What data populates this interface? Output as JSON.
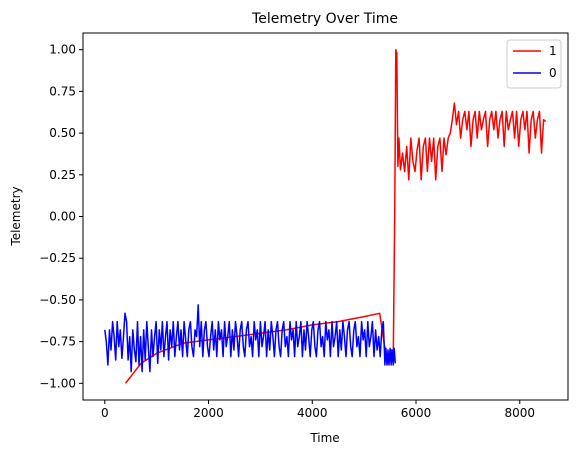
{
  "chart_data": {
    "type": "line",
    "title": "Telemetry Over Time",
    "xlabel": "Time",
    "ylabel": "Telemetry",
    "xlim": [
      -420,
      8930
    ],
    "ylim": [
      -1.1,
      1.1
    ],
    "x_ticks": [
      0,
      2000,
      4000,
      6000,
      8000
    ],
    "x_tick_labels": [
      "0",
      "2000",
      "4000",
      "6000",
      "8000"
    ],
    "y_ticks": [
      -1.0,
      -0.75,
      -0.5,
      -0.25,
      0.0,
      0.25,
      0.5,
      0.75,
      1.0
    ],
    "y_tick_labels": [
      "−1.00",
      "−0.75",
      "−0.50",
      "−0.25",
      "0.00",
      "0.25",
      "0.50",
      "0.75",
      "1.00"
    ],
    "grid": false,
    "legend_position": "top-right",
    "series": [
      {
        "name": "1",
        "color": "#ff0000",
        "points": [
          [
            400,
            -1.0
          ],
          [
            700,
            -0.88
          ],
          [
            1000,
            -0.82
          ],
          [
            1500,
            -0.76
          ],
          [
            2000,
            -0.74
          ],
          [
            2500,
            -0.72
          ],
          [
            3000,
            -0.7
          ],
          [
            3500,
            -0.68
          ],
          [
            4000,
            -0.65
          ],
          [
            4500,
            -0.63
          ],
          [
            5000,
            -0.6
          ],
          [
            5300,
            -0.58
          ],
          [
            5400,
            -0.79
          ],
          [
            5450,
            -0.88
          ],
          [
            5520,
            -0.8
          ],
          [
            5560,
            -0.88
          ],
          [
            5590,
            0.0
          ],
          [
            5610,
            1.0
          ],
          [
            5630,
            0.98
          ],
          [
            5650,
            0.3
          ],
          [
            5670,
            0.47
          ],
          [
            5700,
            0.28
          ],
          [
            5740,
            0.38
          ],
          [
            5780,
            0.27
          ],
          [
            5820,
            0.42
          ],
          [
            5860,
            0.22
          ],
          [
            5900,
            0.47
          ],
          [
            5940,
            0.33
          ],
          [
            5980,
            0.27
          ],
          [
            6020,
            0.4
          ],
          [
            6060,
            0.47
          ],
          [
            6100,
            0.22
          ],
          [
            6140,
            0.42
          ],
          [
            6180,
            0.47
          ],
          [
            6220,
            0.27
          ],
          [
            6260,
            0.47
          ],
          [
            6300,
            0.33
          ],
          [
            6340,
            0.47
          ],
          [
            6380,
            0.22
          ],
          [
            6420,
            0.42
          ],
          [
            6460,
            0.47
          ],
          [
            6500,
            0.27
          ],
          [
            6540,
            0.47
          ],
          [
            6580,
            0.37
          ],
          [
            6620,
            0.47
          ],
          [
            6660,
            0.5
          ],
          [
            6700,
            0.58
          ],
          [
            6740,
            0.68
          ],
          [
            6780,
            0.55
          ],
          [
            6820,
            0.63
          ],
          [
            6860,
            0.47
          ],
          [
            6900,
            0.58
          ],
          [
            6940,
            0.63
          ],
          [
            6980,
            0.52
          ],
          [
            7020,
            0.63
          ],
          [
            7060,
            0.42
          ],
          [
            7100,
            0.58
          ],
          [
            7140,
            0.63
          ],
          [
            7180,
            0.47
          ],
          [
            7220,
            0.63
          ],
          [
            7260,
            0.52
          ],
          [
            7300,
            0.58
          ],
          [
            7340,
            0.63
          ],
          [
            7380,
            0.42
          ],
          [
            7420,
            0.58
          ],
          [
            7460,
            0.63
          ],
          [
            7500,
            0.52
          ],
          [
            7540,
            0.63
          ],
          [
            7580,
            0.47
          ],
          [
            7620,
            0.58
          ],
          [
            7660,
            0.63
          ],
          [
            7700,
            0.42
          ],
          [
            7740,
            0.63
          ],
          [
            7780,
            0.52
          ],
          [
            7820,
            0.58
          ],
          [
            7860,
            0.63
          ],
          [
            7900,
            0.47
          ],
          [
            7940,
            0.63
          ],
          [
            7980,
            0.42
          ],
          [
            8020,
            0.58
          ],
          [
            8060,
            0.63
          ],
          [
            8100,
            0.52
          ],
          [
            8140,
            0.63
          ],
          [
            8180,
            0.38
          ],
          [
            8220,
            0.58
          ],
          [
            8260,
            0.63
          ],
          [
            8300,
            0.47
          ],
          [
            8340,
            0.58
          ],
          [
            8380,
            0.63
          ],
          [
            8420,
            0.38
          ],
          [
            8460,
            0.58
          ],
          [
            8500,
            0.57
          ]
        ]
      },
      {
        "name": "0",
        "color": "#0000ff",
        "points": [
          [
            0,
            -0.68
          ],
          [
            30,
            -0.75
          ],
          [
            60,
            -0.89
          ],
          [
            90,
            -0.68
          ],
          [
            120,
            -0.8
          ],
          [
            150,
            -0.63
          ],
          [
            180,
            -0.72
          ],
          [
            210,
            -0.86
          ],
          [
            240,
            -0.63
          ],
          [
            270,
            -0.78
          ],
          [
            300,
            -0.68
          ],
          [
            330,
            -0.85
          ],
          [
            360,
            -0.72
          ],
          [
            390,
            -0.58
          ],
          [
            420,
            -0.63
          ],
          [
            450,
            -0.86
          ],
          [
            480,
            -0.72
          ],
          [
            510,
            -0.93
          ],
          [
            540,
            -0.68
          ],
          [
            570,
            -0.8
          ],
          [
            600,
            -0.87
          ],
          [
            630,
            -0.63
          ],
          [
            660,
            -0.89
          ],
          [
            690,
            -0.72
          ],
          [
            720,
            -0.93
          ],
          [
            750,
            -0.68
          ],
          [
            780,
            -0.86
          ],
          [
            810,
            -0.63
          ],
          [
            840,
            -0.79
          ],
          [
            870,
            -0.93
          ],
          [
            900,
            -0.68
          ],
          [
            930,
            -0.84
          ],
          [
            960,
            -0.72
          ],
          [
            990,
            -0.63
          ],
          [
            1020,
            -0.88
          ],
          [
            1050,
            -0.68
          ],
          [
            1080,
            -0.8
          ],
          [
            1110,
            -0.63
          ],
          [
            1140,
            -0.84
          ],
          [
            1170,
            -0.72
          ],
          [
            1200,
            -0.63
          ],
          [
            1230,
            -0.86
          ],
          [
            1260,
            -0.68
          ],
          [
            1290,
            -0.78
          ],
          [
            1320,
            -0.63
          ],
          [
            1350,
            -0.84
          ],
          [
            1380,
            -0.72
          ],
          [
            1410,
            -0.63
          ],
          [
            1440,
            -0.8
          ],
          [
            1470,
            -0.68
          ],
          [
            1500,
            -0.84
          ],
          [
            1530,
            -0.63
          ],
          [
            1560,
            -0.74
          ],
          [
            1590,
            -0.84
          ],
          [
            1620,
            -0.68
          ],
          [
            1650,
            -0.63
          ],
          [
            1680,
            -0.78
          ],
          [
            1710,
            -0.84
          ],
          [
            1740,
            -0.68
          ],
          [
            1770,
            -0.72
          ],
          [
            1800,
            -0.53
          ],
          [
            1830,
            -0.78
          ],
          [
            1860,
            -0.63
          ],
          [
            1890,
            -0.84
          ],
          [
            1920,
            -0.68
          ],
          [
            1950,
            -0.63
          ],
          [
            1980,
            -0.78
          ],
          [
            2010,
            -0.84
          ],
          [
            2040,
            -0.72
          ],
          [
            2070,
            -0.63
          ],
          [
            2100,
            -0.8
          ],
          [
            2130,
            -0.68
          ],
          [
            2160,
            -0.84
          ],
          [
            2190,
            -0.63
          ],
          [
            2220,
            -0.74
          ],
          [
            2250,
            -0.68
          ],
          [
            2280,
            -0.84
          ],
          [
            2310,
            -0.63
          ],
          [
            2340,
            -0.78
          ],
          [
            2370,
            -0.72
          ],
          [
            2400,
            -0.63
          ],
          [
            2430,
            -0.84
          ],
          [
            2460,
            -0.68
          ],
          [
            2490,
            -0.8
          ],
          [
            2520,
            -0.63
          ],
          [
            2550,
            -0.72
          ],
          [
            2580,
            -0.84
          ],
          [
            2610,
            -0.68
          ],
          [
            2640,
            -0.63
          ],
          [
            2670,
            -0.78
          ],
          [
            2700,
            -0.84
          ],
          [
            2730,
            -0.68
          ],
          [
            2760,
            -0.63
          ],
          [
            2790,
            -0.78
          ],
          [
            2820,
            -0.72
          ],
          [
            2850,
            -0.84
          ],
          [
            2880,
            -0.63
          ],
          [
            2910,
            -0.74
          ],
          [
            2940,
            -0.68
          ],
          [
            2970,
            -0.84
          ],
          [
            3000,
            -0.63
          ],
          [
            3030,
            -0.78
          ],
          [
            3060,
            -0.72
          ],
          [
            3090,
            -0.63
          ],
          [
            3120,
            -0.84
          ],
          [
            3150,
            -0.68
          ],
          [
            3180,
            -0.8
          ],
          [
            3210,
            -0.63
          ],
          [
            3240,
            -0.72
          ],
          [
            3270,
            -0.84
          ],
          [
            3300,
            -0.68
          ],
          [
            3330,
            -0.63
          ],
          [
            3360,
            -0.78
          ],
          [
            3390,
            -0.84
          ],
          [
            3420,
            -0.68
          ],
          [
            3450,
            -0.63
          ],
          [
            3480,
            -0.78
          ],
          [
            3510,
            -0.72
          ],
          [
            3540,
            -0.84
          ],
          [
            3570,
            -0.63
          ],
          [
            3600,
            -0.74
          ],
          [
            3630,
            -0.68
          ],
          [
            3660,
            -0.84
          ],
          [
            3690,
            -0.63
          ],
          [
            3720,
            -0.78
          ],
          [
            3750,
            -0.72
          ],
          [
            3780,
            -0.63
          ],
          [
            3810,
            -0.84
          ],
          [
            3840,
            -0.68
          ],
          [
            3870,
            -0.8
          ],
          [
            3900,
            -0.63
          ],
          [
            3930,
            -0.72
          ],
          [
            3960,
            -0.84
          ],
          [
            3990,
            -0.68
          ],
          [
            4020,
            -0.63
          ],
          [
            4050,
            -0.78
          ],
          [
            4080,
            -0.84
          ],
          [
            4110,
            -0.68
          ],
          [
            4140,
            -0.63
          ],
          [
            4170,
            -0.78
          ],
          [
            4200,
            -0.72
          ],
          [
            4230,
            -0.84
          ],
          [
            4260,
            -0.63
          ],
          [
            4290,
            -0.74
          ],
          [
            4320,
            -0.68
          ],
          [
            4350,
            -0.84
          ],
          [
            4380,
            -0.63
          ],
          [
            4410,
            -0.78
          ],
          [
            4440,
            -0.72
          ],
          [
            4470,
            -0.63
          ],
          [
            4500,
            -0.84
          ],
          [
            4530,
            -0.68
          ],
          [
            4560,
            -0.8
          ],
          [
            4590,
            -0.63
          ],
          [
            4620,
            -0.72
          ],
          [
            4650,
            -0.84
          ],
          [
            4680,
            -0.68
          ],
          [
            4710,
            -0.63
          ],
          [
            4740,
            -0.78
          ],
          [
            4770,
            -0.84
          ],
          [
            4800,
            -0.68
          ],
          [
            4830,
            -0.63
          ],
          [
            4860,
            -0.78
          ],
          [
            4890,
            -0.72
          ],
          [
            4920,
            -0.84
          ],
          [
            4950,
            -0.63
          ],
          [
            4980,
            -0.74
          ],
          [
            5010,
            -0.68
          ],
          [
            5040,
            -0.84
          ],
          [
            5070,
            -0.63
          ],
          [
            5100,
            -0.78
          ],
          [
            5130,
            -0.72
          ],
          [
            5160,
            -0.63
          ],
          [
            5190,
            -0.84
          ],
          [
            5220,
            -0.68
          ],
          [
            5250,
            -0.8
          ],
          [
            5280,
            -0.72
          ],
          [
            5310,
            -0.84
          ],
          [
            5340,
            -0.68
          ],
          [
            5370,
            -0.63
          ],
          [
            5400,
            -0.89
          ],
          [
            5420,
            -0.79
          ],
          [
            5440,
            -0.89
          ],
          [
            5460,
            -0.8
          ],
          [
            5480,
            -0.89
          ],
          [
            5500,
            -0.79
          ],
          [
            5520,
            -0.89
          ],
          [
            5540,
            -0.8
          ],
          [
            5560,
            -0.89
          ],
          [
            5580,
            -0.79
          ],
          [
            5600,
            -0.88
          ]
        ]
      }
    ]
  }
}
